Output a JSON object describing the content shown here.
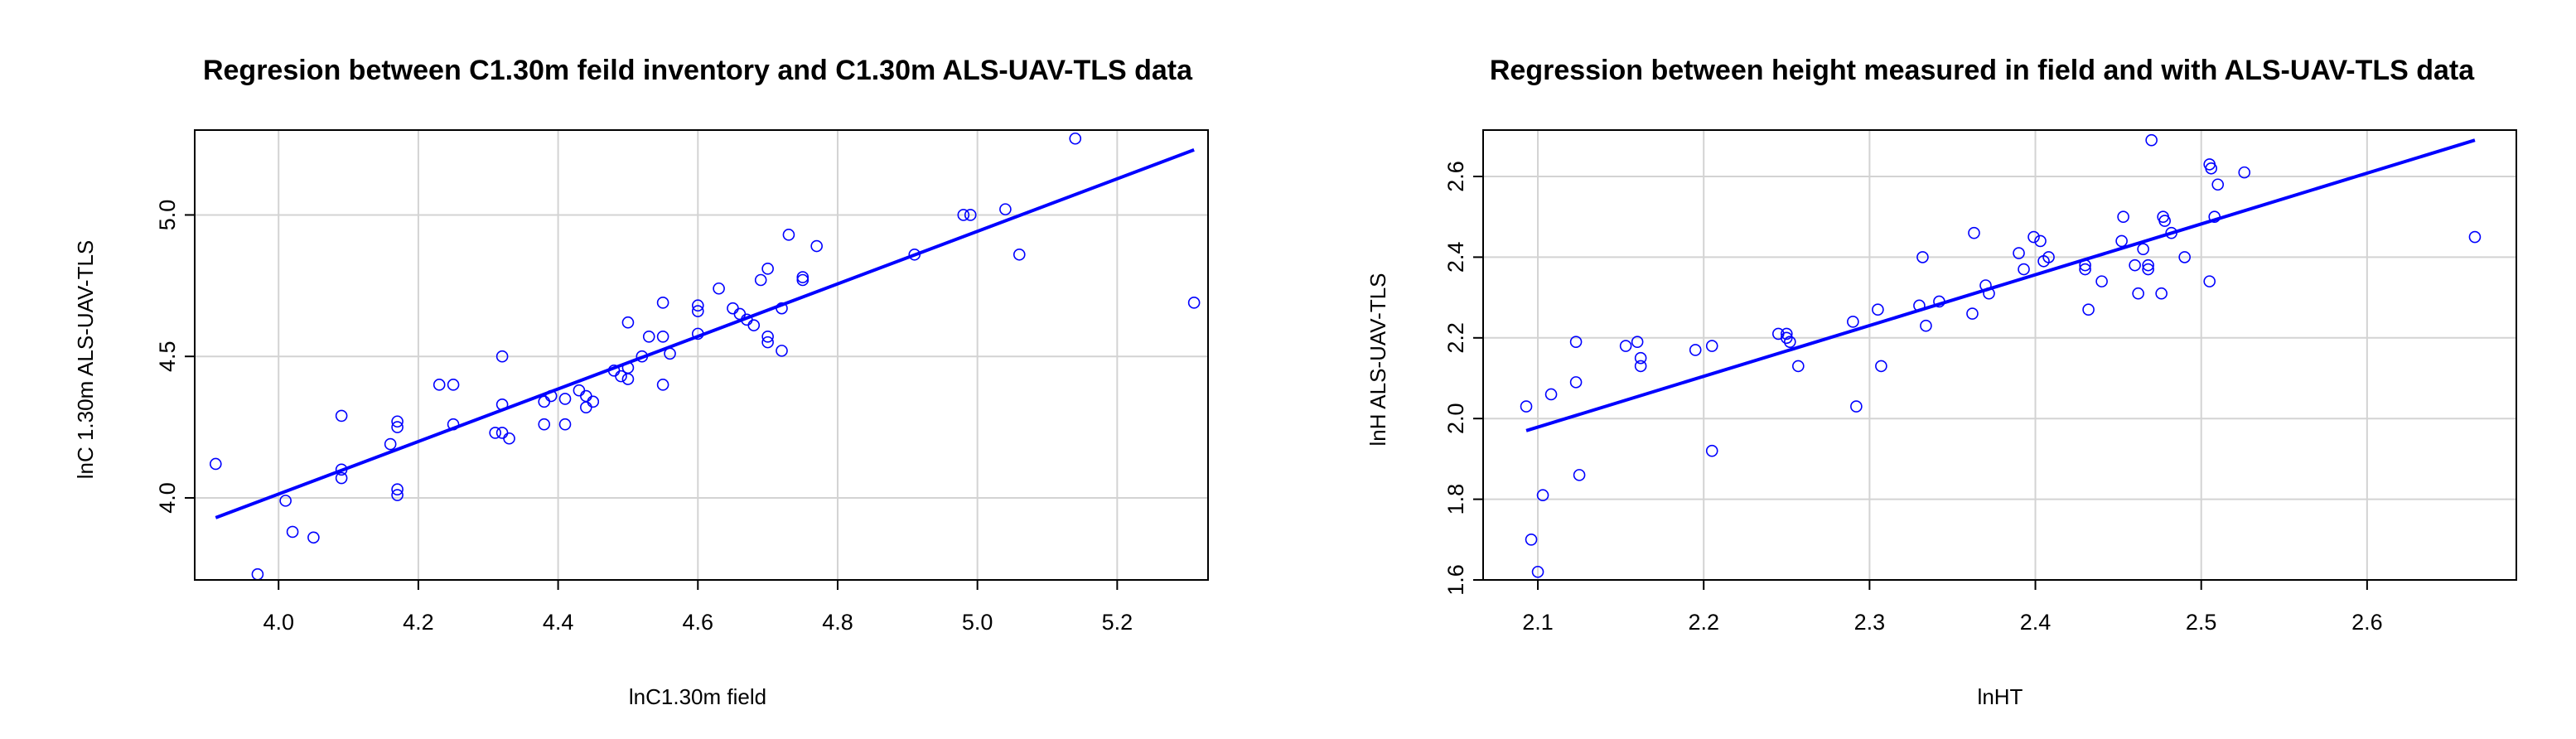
{
  "chart_data": [
    {
      "type": "scatter",
      "title": "Regresion between C1.30m feild inventory and C1.30m ALS-UAV-TLS data",
      "xlabel": "lnC1.30m field",
      "ylabel": "lnC 1.30m ALS-UAV-TLS",
      "xlim": [
        3.88,
        5.33
      ],
      "ylim": [
        3.71,
        5.3
      ],
      "xticks": [
        4.0,
        4.2,
        4.4,
        4.6,
        4.8,
        5.0,
        5.2
      ],
      "xtick_labels": [
        "4.0",
        "4.2",
        "4.4",
        "4.6",
        "4.8",
        "5.0",
        "5.2"
      ],
      "yticks": [
        4.0,
        4.5,
        5.0
      ],
      "ytick_labels": [
        "4.0",
        "4.5",
        "5.0"
      ],
      "grid": true,
      "color": "#0000ff",
      "points": [
        [
          3.91,
          4.12
        ],
        [
          3.97,
          3.73
        ],
        [
          4.01,
          3.99
        ],
        [
          4.02,
          3.88
        ],
        [
          4.05,
          3.86
        ],
        [
          4.09,
          4.29
        ],
        [
          4.09,
          4.1
        ],
        [
          4.09,
          4.07
        ],
        [
          4.16,
          4.19
        ],
        [
          4.17,
          4.27
        ],
        [
          4.17,
          4.25
        ],
        [
          4.17,
          4.03
        ],
        [
          4.17,
          4.01
        ],
        [
          4.23,
          4.4
        ],
        [
          4.25,
          4.4
        ],
        [
          4.25,
          4.26
        ],
        [
          4.31,
          4.23
        ],
        [
          4.32,
          4.23
        ],
        [
          4.32,
          4.33
        ],
        [
          4.32,
          4.5
        ],
        [
          4.33,
          4.21
        ],
        [
          4.38,
          4.34
        ],
        [
          4.38,
          4.26
        ],
        [
          4.39,
          4.36
        ],
        [
          4.41,
          4.35
        ],
        [
          4.41,
          4.26
        ],
        [
          4.43,
          4.38
        ],
        [
          4.44,
          4.36
        ],
        [
          4.44,
          4.32
        ],
        [
          4.45,
          4.34
        ],
        [
          4.48,
          4.45
        ],
        [
          4.49,
          4.43
        ],
        [
          4.5,
          4.46
        ],
        [
          4.5,
          4.42
        ],
        [
          4.5,
          4.62
        ],
        [
          4.52,
          4.5
        ],
        [
          4.53,
          4.57
        ],
        [
          4.55,
          4.69
        ],
        [
          4.55,
          4.57
        ],
        [
          4.55,
          4.4
        ],
        [
          4.56,
          4.51
        ],
        [
          4.6,
          4.68
        ],
        [
          4.6,
          4.66
        ],
        [
          4.6,
          4.58
        ],
        [
          4.63,
          4.74
        ],
        [
          4.65,
          4.67
        ],
        [
          4.66,
          4.65
        ],
        [
          4.67,
          4.63
        ],
        [
          4.68,
          4.61
        ],
        [
          4.69,
          4.77
        ],
        [
          4.7,
          4.57
        ],
        [
          4.7,
          4.55
        ],
        [
          4.7,
          4.81
        ],
        [
          4.72,
          4.67
        ],
        [
          4.72,
          4.52
        ],
        [
          4.73,
          4.93
        ],
        [
          4.75,
          4.78
        ],
        [
          4.75,
          4.77
        ],
        [
          4.77,
          4.89
        ],
        [
          4.91,
          4.86
        ],
        [
          4.98,
          5.0
        ],
        [
          4.99,
          5.0
        ],
        [
          5.04,
          5.02
        ],
        [
          5.06,
          4.86
        ],
        [
          5.14,
          5.27
        ],
        [
          5.31,
          4.69
        ]
      ],
      "fit_line": {
        "x": [
          3.91,
          5.31
        ],
        "y": [
          3.93,
          5.23
        ]
      }
    },
    {
      "type": "scatter",
      "title": "Regression between height measured in field and with ALS-UAV-TLS data",
      "xlabel": "lnHT",
      "ylabel": "lnH ALS-UAV-TLS",
      "xlim": [
        2.067,
        2.69
      ],
      "ylim": [
        1.6,
        2.715
      ],
      "xticks": [
        2.1,
        2.2,
        2.3,
        2.4,
        2.5,
        2.6
      ],
      "xtick_labels": [
        "2.1",
        "2.2",
        "2.3",
        "2.4",
        "2.5",
        "2.6"
      ],
      "yticks": [
        1.6,
        1.8,
        2.0,
        2.2,
        2.4,
        2.6
      ],
      "ytick_labels": [
        "1.6",
        "1.8",
        "2.0",
        "2.2",
        "2.4",
        "2.6"
      ],
      "grid": true,
      "color": "#0000ff",
      "points": [
        [
          2.093,
          2.03
        ],
        [
          2.096,
          1.7
        ],
        [
          2.1,
          1.62
        ],
        [
          2.103,
          1.81
        ],
        [
          2.108,
          2.06
        ],
        [
          2.123,
          2.09
        ],
        [
          2.123,
          2.19
        ],
        [
          2.125,
          1.86
        ],
        [
          2.153,
          2.18
        ],
        [
          2.16,
          2.19
        ],
        [
          2.162,
          2.15
        ],
        [
          2.162,
          2.13
        ],
        [
          2.195,
          2.17
        ],
        [
          2.205,
          2.18
        ],
        [
          2.205,
          1.92
        ],
        [
          2.245,
          2.21
        ],
        [
          2.25,
          2.21
        ],
        [
          2.25,
          2.2
        ],
        [
          2.252,
          2.19
        ],
        [
          2.257,
          2.13
        ],
        [
          2.29,
          2.24
        ],
        [
          2.292,
          2.03
        ],
        [
          2.305,
          2.27
        ],
        [
          2.307,
          2.13
        ],
        [
          2.33,
          2.28
        ],
        [
          2.332,
          2.4
        ],
        [
          2.334,
          2.23
        ],
        [
          2.342,
          2.29
        ],
        [
          2.362,
          2.26
        ],
        [
          2.363,
          2.46
        ],
        [
          2.37,
          2.33
        ],
        [
          2.372,
          2.31
        ],
        [
          2.39,
          2.41
        ],
        [
          2.393,
          2.37
        ],
        [
          2.399,
          2.45
        ],
        [
          2.403,
          2.44
        ],
        [
          2.405,
          2.39
        ],
        [
          2.408,
          2.4
        ],
        [
          2.43,
          2.38
        ],
        [
          2.43,
          2.37
        ],
        [
          2.432,
          2.27
        ],
        [
          2.44,
          2.34
        ],
        [
          2.452,
          2.44
        ],
        [
          2.453,
          2.5
        ],
        [
          2.46,
          2.38
        ],
        [
          2.462,
          2.31
        ],
        [
          2.465,
          2.42
        ],
        [
          2.468,
          2.38
        ],
        [
          2.468,
          2.37
        ],
        [
          2.47,
          2.69
        ],
        [
          2.476,
          2.31
        ],
        [
          2.477,
          2.5
        ],
        [
          2.478,
          2.49
        ],
        [
          2.482,
          2.46
        ],
        [
          2.49,
          2.4
        ],
        [
          2.505,
          2.34
        ],
        [
          2.505,
          2.63
        ],
        [
          2.506,
          2.62
        ],
        [
          2.508,
          2.5
        ],
        [
          2.51,
          2.58
        ],
        [
          2.526,
          2.61
        ],
        [
          2.665,
          2.45
        ]
      ],
      "fit_line": {
        "x": [
          2.093,
          2.665
        ],
        "y": [
          1.97,
          2.69
        ]
      }
    }
  ]
}
